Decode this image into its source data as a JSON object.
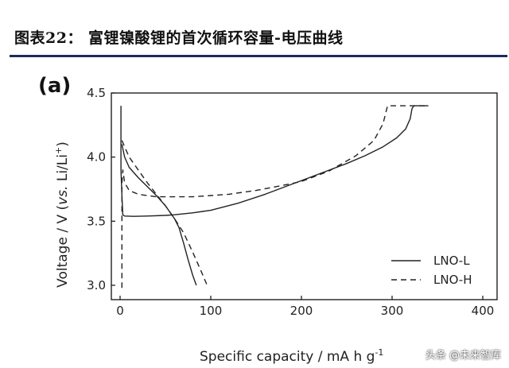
{
  "header": {
    "title": "图表22：   富锂镍酸锂的首次循环容量-电压曲线"
  },
  "watermark": "头条 @未来智库",
  "chart_data": {
    "type": "line",
    "panel_label": "(a)",
    "xlabel": "Specific capacity / mA h g",
    "xlabel_sup": "-1",
    "ylabel_parts": [
      "Voltage / V (",
      "vs.",
      " Li/Li",
      "+",
      ")"
    ],
    "xlim": [
      0,
      400
    ],
    "ylim": [
      2.95,
      4.5
    ],
    "x_ticks": [
      0,
      100,
      200,
      300,
      400
    ],
    "y_ticks": [
      3.0,
      3.5,
      4.0,
      4.5
    ],
    "y_tick_labels": [
      "3.0",
      "3.5",
      "4.0",
      "4.5"
    ],
    "grid": false,
    "legend_position": "bottom-right",
    "series": [
      {
        "name": "LNO-L",
        "style": "solid",
        "color": "#222222",
        "segments": [
          [
            [
              1,
              4.4
            ],
            [
              1,
              3.9
            ],
            [
              2,
              3.7
            ],
            [
              3,
              3.55
            ],
            [
              5,
              3.54
            ],
            [
              15,
              3.538
            ],
            [
              30,
              3.54
            ],
            [
              50,
              3.545
            ],
            [
              60,
              3.55
            ],
            [
              80,
              3.565
            ],
            [
              100,
              3.585
            ],
            [
              130,
              3.64
            ],
            [
              160,
              3.71
            ],
            [
              190,
              3.79
            ],
            [
              220,
              3.87
            ],
            [
              250,
              3.95
            ],
            [
              270,
              4.01
            ],
            [
              290,
              4.08
            ],
            [
              305,
              4.15
            ],
            [
              315,
              4.22
            ],
            [
              320,
              4.3
            ],
            [
              322,
              4.38
            ],
            [
              324,
              4.4
            ],
            [
              340,
              4.4
            ]
          ],
          [
            [
              2,
              4.1
            ],
            [
              5,
              4.0
            ],
            [
              10,
              3.92
            ],
            [
              20,
              3.84
            ],
            [
              30,
              3.77
            ],
            [
              40,
              3.7
            ],
            [
              50,
              3.62
            ],
            [
              60,
              3.52
            ],
            [
              65,
              3.45
            ],
            [
              70,
              3.33
            ],
            [
              75,
              3.2
            ],
            [
              80,
              3.08
            ],
            [
              84,
              3.0
            ]
          ]
        ]
      },
      {
        "name": "LNO-H",
        "style": "dashed",
        "color": "#222222",
        "segments": [
          [
            [
              2,
              2.98
            ],
            [
              2,
              3.8
            ],
            [
              3,
              3.9
            ],
            [
              5,
              3.8
            ],
            [
              10,
              3.74
            ],
            [
              20,
              3.71
            ],
            [
              40,
              3.69
            ],
            [
              60,
              3.69
            ],
            [
              80,
              3.69
            ],
            [
              100,
              3.7
            ],
            [
              120,
              3.71
            ],
            [
              150,
              3.74
            ],
            [
              180,
              3.78
            ],
            [
              200,
              3.81
            ],
            [
              230,
              3.89
            ],
            [
              260,
              4.01
            ],
            [
              280,
              4.13
            ],
            [
              290,
              4.26
            ],
            [
              295,
              4.4
            ],
            [
              340,
              4.4
            ]
          ],
          [
            [
              2,
              4.13
            ],
            [
              5,
              4.08
            ],
            [
              10,
              4.0
            ],
            [
              20,
              3.9
            ],
            [
              30,
              3.8
            ],
            [
              40,
              3.71
            ],
            [
              50,
              3.62
            ],
            [
              60,
              3.52
            ],
            [
              70,
              3.41
            ],
            [
              80,
              3.26
            ],
            [
              90,
              3.1
            ],
            [
              96,
              3.0
            ]
          ]
        ]
      }
    ]
  }
}
